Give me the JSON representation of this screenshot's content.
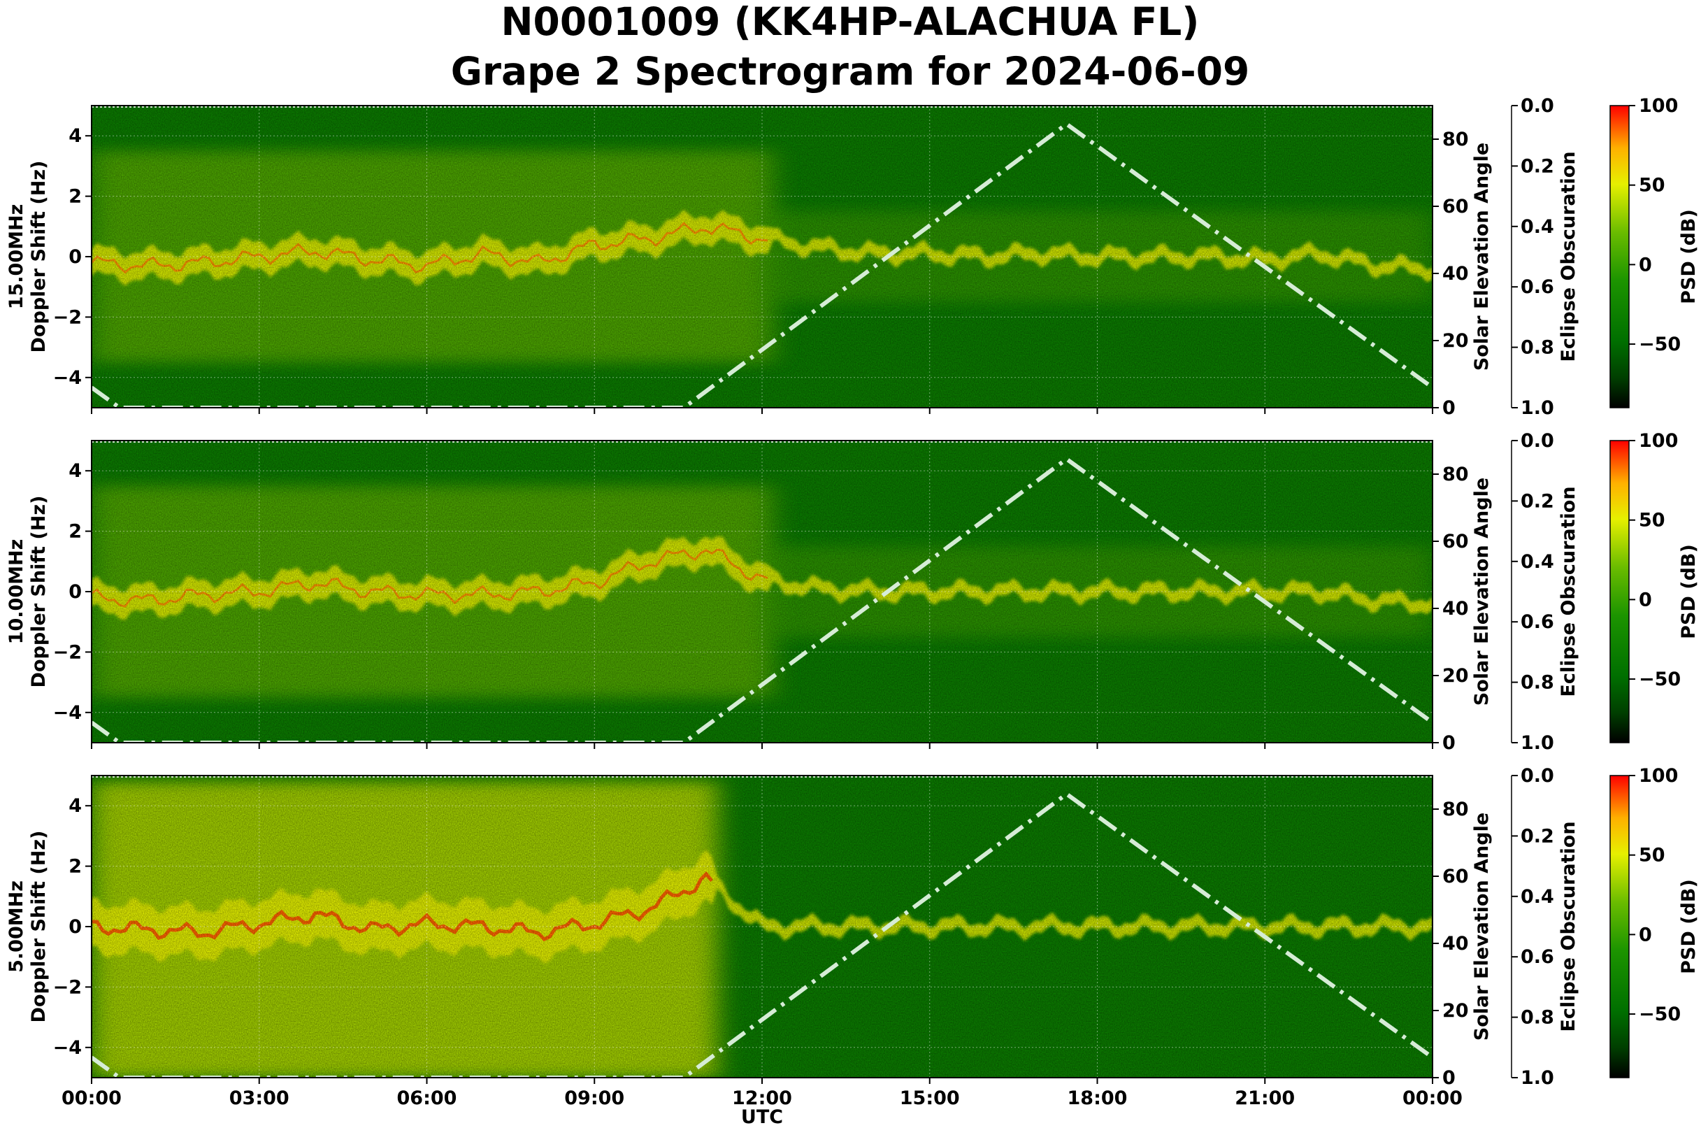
{
  "title": {
    "line1": "N0001009 (KK4HP-ALACHUA FL)",
    "line2": "Grape 2 Spectrogram for 2024-06-09"
  },
  "chart_data": {
    "type": "heatmap",
    "x_label": "UTC",
    "x_range_hours": [
      0,
      24
    ],
    "x_ticks": [
      {
        "h": 0,
        "label": "00:00"
      },
      {
        "h": 3,
        "label": "03:00"
      },
      {
        "h": 6,
        "label": "06:00"
      },
      {
        "h": 9,
        "label": "09:00"
      },
      {
        "h": 12,
        "label": "12:00"
      },
      {
        "h": 15,
        "label": "15:00"
      },
      {
        "h": 18,
        "label": "18:00"
      },
      {
        "h": 21,
        "label": "21:00"
      },
      {
        "h": 24,
        "label": "00:00"
      }
    ],
    "y_range": [
      -5,
      5
    ],
    "y_ticks": [
      {
        "v": 4,
        "label": "4"
      },
      {
        "v": 2,
        "label": "2"
      },
      {
        "v": 0,
        "label": "0"
      },
      {
        "v": -2,
        "label": "−2"
      },
      {
        "v": -4,
        "label": "−4"
      }
    ],
    "right_axis": {
      "label": "Solar Elevation Angle",
      "range": [
        0,
        90
      ],
      "ticks": [
        {
          "v": 0,
          "label": "0"
        },
        {
          "v": 20,
          "label": "20"
        },
        {
          "v": 40,
          "label": "40"
        },
        {
          "v": 60,
          "label": "60"
        },
        {
          "v": 80,
          "label": "80"
        }
      ]
    },
    "eclipse_axis": {
      "label": "Eclipse Obscuration",
      "range": [
        0,
        1
      ],
      "inverted": true,
      "ticks": [
        {
          "v": 0.0,
          "label": "0.0"
        },
        {
          "v": 0.2,
          "label": "0.2"
        },
        {
          "v": 0.4,
          "label": "0.4"
        },
        {
          "v": 0.6,
          "label": "0.6"
        },
        {
          "v": 0.8,
          "label": "0.8"
        },
        {
          "v": 1.0,
          "label": "1.0"
        }
      ]
    },
    "colorbar": {
      "label": "PSD (dB)",
      "range": [
        -90,
        100
      ],
      "ticks": [
        {
          "v": 100,
          "label": "100"
        },
        {
          "v": 50,
          "label": "50"
        },
        {
          "v": 0,
          "label": "0"
        },
        {
          "v": -50,
          "label": "−50"
        }
      ],
      "colors": [
        "#000000",
        "#004d00",
        "#008800",
        "#22a000",
        "#88c800",
        "#ffff00",
        "#ffa000",
        "#ff0000"
      ]
    },
    "solar_elevation_curve": {
      "hours": [
        0,
        0.5,
        10.6,
        17.45,
        24
      ],
      "degrees": [
        6,
        0,
        0,
        84.5,
        6
      ]
    },
    "panels": [
      {
        "freq_label": "15.00MHz",
        "y_label": "Doppler Shift (Hz)",
        "activity": "moderate",
        "trace_hours": [
          0,
          1,
          2,
          3,
          4,
          5,
          6,
          7,
          8,
          9,
          10,
          11,
          12,
          13,
          14,
          15,
          16,
          17,
          18,
          19,
          20,
          21,
          22,
          23,
          24
        ],
        "trace_hz": [
          -0.2,
          -0.3,
          -0.2,
          0.0,
          0.2,
          -0.1,
          -0.3,
          0.1,
          -0.2,
          0.4,
          0.6,
          1.0,
          0.6,
          0.3,
          0.1,
          0.1,
          0.0,
          0.1,
          0.0,
          0.0,
          0.0,
          -0.1,
          0.1,
          -0.3,
          -0.4
        ]
      },
      {
        "freq_label": "10.00MHz",
        "y_label": "Doppler Shift (Hz)",
        "activity": "moderate",
        "trace_hours": [
          0,
          1,
          2,
          3,
          4,
          5,
          6,
          7,
          8,
          9,
          10,
          11,
          12,
          13,
          14,
          15,
          16,
          17,
          18,
          19,
          20,
          21,
          22,
          23,
          24
        ],
        "trace_hz": [
          -0.2,
          -0.3,
          -0.1,
          0.0,
          0.3,
          0.0,
          -0.1,
          -0.1,
          0.0,
          0.3,
          1.0,
          1.4,
          0.4,
          0.1,
          0.0,
          0.0,
          0.0,
          0.0,
          0.0,
          0.0,
          0.0,
          0.0,
          0.0,
          -0.3,
          -0.4
        ]
      },
      {
        "freq_label": "5.00MHz",
        "y_label": "Doppler Shift (Hz)",
        "activity": "strong",
        "trace_hours": [
          0,
          1,
          2,
          3,
          4,
          5,
          6,
          7,
          8,
          9,
          10,
          11,
          12,
          13,
          14,
          15,
          16,
          17,
          18,
          19,
          20,
          21,
          22,
          23,
          24
        ],
        "trace_hz": [
          0.0,
          -0.1,
          -0.2,
          0.1,
          0.4,
          -0.1,
          0.1,
          0.0,
          -0.2,
          0.1,
          0.6,
          1.6,
          0.0,
          0.0,
          0.0,
          0.0,
          0.0,
          0.0,
          0.0,
          0.0,
          0.0,
          0.0,
          0.0,
          0.0,
          0.0
        ]
      }
    ]
  }
}
